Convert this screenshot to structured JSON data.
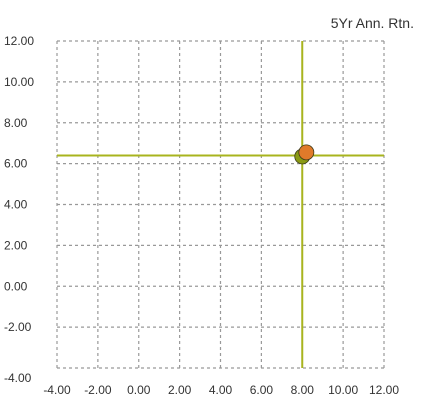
{
  "chart_data": {
    "type": "scatter",
    "title": "5Yr Ann. Rtn.",
    "xlim": [
      -4,
      12
    ],
    "ylim": [
      -4,
      12
    ],
    "x_ticks": [
      "-4.00",
      "-2.00",
      "0.00",
      "2.00",
      "4.00",
      "6.00",
      "8.00",
      "10.00",
      "12.00"
    ],
    "y_ticks": [
      "-4.00",
      "-2.00",
      "0.00",
      "2.00",
      "4.00",
      "6.00",
      "8.00",
      "10.00",
      "12.00"
    ],
    "grid": true,
    "reference_lines": {
      "x": 8.0,
      "y": 6.4
    },
    "points": [
      {
        "x": 8.0,
        "y": 6.35,
        "color": "#8a9a14"
      },
      {
        "x": 8.2,
        "y": 6.55,
        "color": "#e07a2a"
      }
    ],
    "colors": {
      "grid": "#999999",
      "reference": "#a8b41e"
    }
  }
}
